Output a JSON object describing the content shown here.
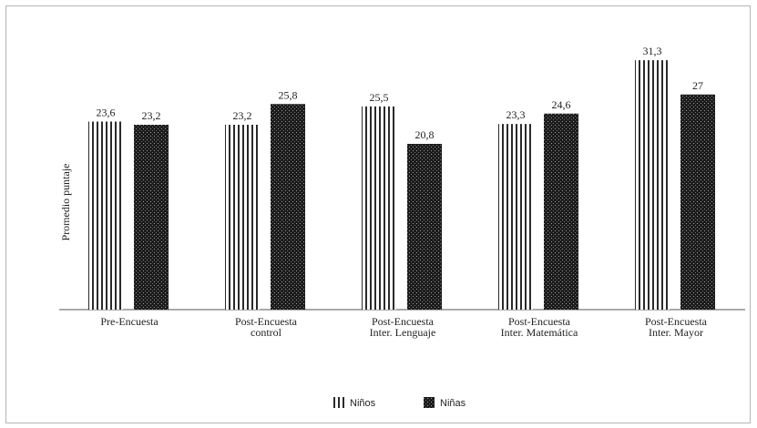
{
  "chart_data": {
    "type": "bar",
    "ylabel": "Promedio puntaje",
    "categories": [
      [
        "Pre-Encuesta"
      ],
      [
        "Post-Encuesta",
        "control"
      ],
      [
        "Post-Encuesta",
        "Inter. Lenguaje"
      ],
      [
        "Post-Encuesta",
        "Inter. Matemática"
      ],
      [
        "Post-Encuesta",
        "Inter. Mayor"
      ]
    ],
    "series": [
      {
        "name": "Niños",
        "pattern": "vertical-stripes",
        "color": "#2a2a2a",
        "values": [
          23.6,
          23.2,
          25.5,
          23.3,
          31.3
        ],
        "labels": [
          "23,6",
          "23,2",
          "25,5",
          "23,3",
          "31,3"
        ]
      },
      {
        "name": "Niñas",
        "pattern": "dotted-dark",
        "color": "#1c1c1c",
        "values": [
          23.2,
          25.8,
          20.8,
          24.6,
          27
        ],
        "labels": [
          "23,2",
          "25,8",
          "20,8",
          "24,6",
          "27"
        ]
      }
    ],
    "ylim": [
      0,
      34
    ],
    "legend_position": "bottom-center",
    "grid": false
  }
}
